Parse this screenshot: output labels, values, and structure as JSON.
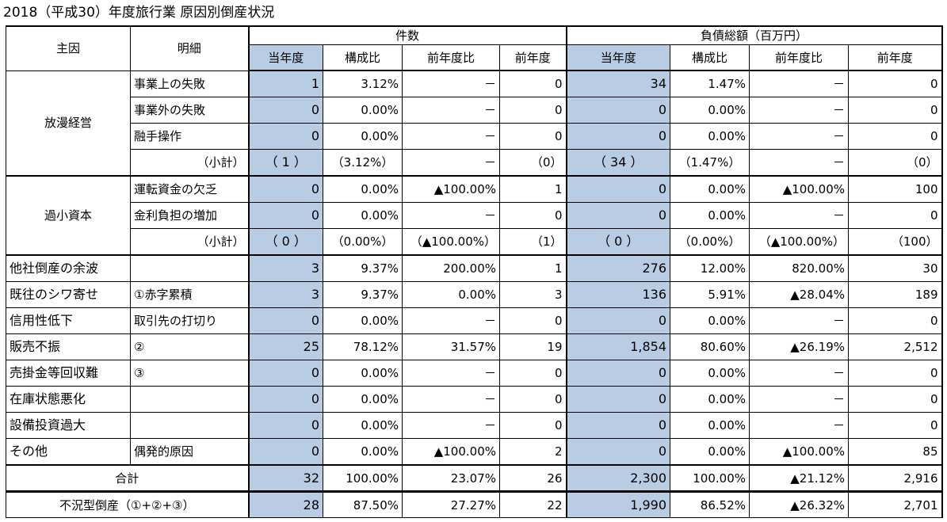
{
  "title": "2018（平成30）年度旅行業 原因別倒産状況",
  "headers": {
    "main_cause": "主因",
    "detail": "明細",
    "count_group": "件数",
    "debt_group": "負債総額（百万円）",
    "sub": [
      "当年度",
      "構成比",
      "前年度比",
      "前年度",
      "当年度",
      "構成比",
      "前年度比",
      "前年度"
    ]
  },
  "groups": [
    {
      "cause": "放漫経営",
      "rows": [
        {
          "detail": "事業上の失敗",
          "v": [
            "1",
            "3.12%",
            "－",
            "0",
            "34",
            "1.47%",
            "－",
            "0"
          ]
        },
        {
          "detail": "事業外の失敗",
          "v": [
            "0",
            "0.00%",
            "－",
            "0",
            "0",
            "0.00%",
            "－",
            "0"
          ]
        },
        {
          "detail": "融手操作",
          "v": [
            "0",
            "0.00%",
            "－",
            "0",
            "0",
            "0.00%",
            "－",
            "0"
          ]
        }
      ],
      "subtotal": {
        "label": "（小計）",
        "v": [
          "（ 1 ）",
          "（3.12%）",
          "－",
          "（0）",
          "（ 34 ）",
          "（1.47%）",
          "－",
          "（0）"
        ]
      }
    },
    {
      "cause": "過小資本",
      "rows": [
        {
          "detail": "運転資金の欠乏",
          "v": [
            "0",
            "0.00%",
            "▲100.00%",
            "1",
            "0",
            "0.00%",
            "▲100.00%",
            "100"
          ]
        },
        {
          "detail": "金利負担の増加",
          "v": [
            "0",
            "0.00%",
            "－",
            "0",
            "0",
            "0.00%",
            "－",
            "0"
          ]
        }
      ],
      "subtotal": {
        "label": "（小計）",
        "v": [
          "（ 0 ）",
          "（0.00%）",
          "（▲100.00%）",
          "（1）",
          "（ 0 ）",
          "（0.00%）",
          "（▲100.00%）",
          "（100）"
        ]
      }
    }
  ],
  "single_rows": [
    {
      "cause": "他社倒産の余波",
      "detail": "",
      "v": [
        "3",
        "9.37%",
        "200.00%",
        "1",
        "276",
        "12.00%",
        "820.00%",
        "30"
      ]
    },
    {
      "cause": "既往のシワ寄せ",
      "detail": "①赤字累積",
      "v": [
        "3",
        "9.37%",
        "0.00%",
        "3",
        "136",
        "5.91%",
        "▲28.04%",
        "189"
      ]
    },
    {
      "cause": "信用性低下",
      "detail": "取引先の打切り",
      "v": [
        "0",
        "0.00%",
        "－",
        "0",
        "0",
        "0.00%",
        "－",
        "0"
      ]
    },
    {
      "cause": "販売不振",
      "detail": "②",
      "v": [
        "25",
        "78.12%",
        "31.57%",
        "19",
        "1,854",
        "80.60%",
        "▲26.19%",
        "2,512"
      ]
    },
    {
      "cause": "売掛金等回収難",
      "detail": "③",
      "v": [
        "0",
        "0.00%",
        "－",
        "0",
        "0",
        "0.00%",
        "－",
        "0"
      ]
    },
    {
      "cause": "在庫状態悪化",
      "detail": "",
      "v": [
        "0",
        "0.00%",
        "－",
        "0",
        "0",
        "0.00%",
        "－",
        "0"
      ]
    },
    {
      "cause": "設備投資過大",
      "detail": "",
      "v": [
        "0",
        "0.00%",
        "－",
        "0",
        "0",
        "0.00%",
        "－",
        "0"
      ]
    },
    {
      "cause": "その他",
      "detail": "偶発的原因",
      "v": [
        "0",
        "0.00%",
        "▲100.00%",
        "2",
        "0",
        "0.00%",
        "▲100.00%",
        "85"
      ]
    }
  ],
  "total": {
    "label": "合計",
    "v": [
      "32",
      "100.00%",
      "23.07%",
      "26",
      "2,300",
      "100.00%",
      "▲21.12%",
      "2,916"
    ]
  },
  "recession": {
    "label": "不況型倒産（①+②+③）",
    "v": [
      "28",
      "87.50%",
      "27.27%",
      "22",
      "1,990",
      "86.52%",
      "▲26.32%",
      "2,701"
    ]
  }
}
